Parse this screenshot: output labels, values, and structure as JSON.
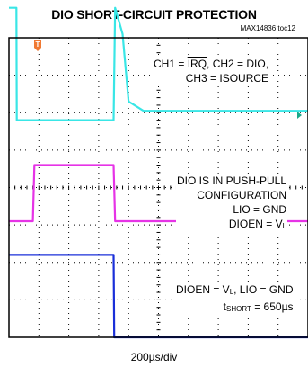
{
  "chart_data": {
    "type": "line",
    "title": "DIO SHORT-CIRCUIT PROTECTION",
    "part_label": "MAX14836 toc12",
    "x_axis": {
      "label": "200µs/div",
      "divisions": 10,
      "time_per_div_us": 200
    },
    "y_axis": {
      "divisions": 8
    },
    "grid": true,
    "trigger_marker": "T",
    "series": [
      {
        "name": "CH1",
        "signal": "IRQ",
        "color": "#39e6e6",
        "x_div": [
          0,
          0.25,
          0.26,
          3.5,
          3.55,
          3.8,
          4.0,
          4.5,
          10
        ],
        "y_div": [
          0.8,
          0.8,
          -2.2,
          -2.2,
          0.8,
          0.1,
          -1.7,
          -1.95,
          -1.95
        ]
      },
      {
        "name": "CH2",
        "signal": "DIO",
        "color": "#e633e6",
        "x_div": [
          0,
          0.8,
          0.85,
          3.5,
          3.55,
          10
        ],
        "y_div": [
          -4.9,
          -4.9,
          -3.4,
          -3.4,
          -4.9,
          -4.9
        ]
      },
      {
        "name": "CH3",
        "signal": "ISOURCE",
        "color": "#1a2fd9",
        "x_div": [
          0,
          3.5,
          3.52,
          10
        ],
        "y_div": [
          -5.8,
          -5.8,
          -8.0,
          -8.0
        ]
      }
    ],
    "annotations": {
      "channels": {
        "line1_prefix": "CH1 = ",
        "line1_signal": "IRQ",
        "line1_suffix": ", CH2 = DIO,",
        "line2": "CH3 = ISOURCE"
      },
      "config": {
        "line1": "DIO IS IN PUSH-PULL",
        "line2": "CONFIGURATION",
        "line3": "LIO = GND",
        "line4_prefix": "DIOEN = V",
        "line4_sub": "L"
      },
      "short": {
        "line1_prefix": "DIOEN = V",
        "line1_sub": "L",
        "line1_suffix": ", LIO = GND",
        "line2_prefix": "t",
        "line2_sub": "SHORT",
        "line2_suffix": " = 650µs"
      }
    }
  }
}
